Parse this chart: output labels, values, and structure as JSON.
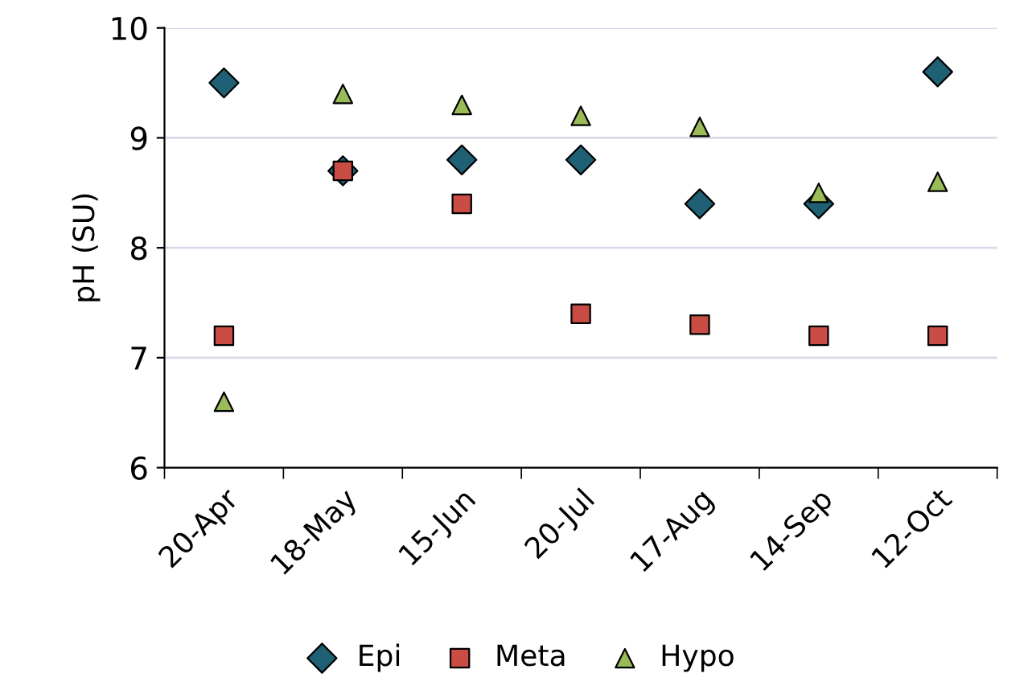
{
  "chart_data": {
    "type": "scatter",
    "ylabel": "pH (SU)",
    "categories": [
      "20-Apr",
      "18-May",
      "15-Jun",
      "20-Jul",
      "17-Aug",
      "14-Sep",
      "12-Oct"
    ],
    "series": [
      {
        "name": "Epi",
        "color": "#1f6075",
        "marker": "diamond",
        "values": [
          9.5,
          8.7,
          8.8,
          8.8,
          8.4,
          8.4,
          9.6
        ]
      },
      {
        "name": "Meta",
        "color": "#c94d45",
        "marker": "square",
        "values": [
          7.2,
          8.7,
          8.4,
          7.4,
          7.3,
          7.2,
          7.2
        ]
      },
      {
        "name": "Hypo",
        "color": "#9bbb59",
        "marker": "triangle",
        "values": [
          6.6,
          9.4,
          9.3,
          9.2,
          9.1,
          8.5,
          8.6
        ]
      }
    ],
    "ylim": [
      6,
      10
    ],
    "yticks": [
      6,
      7,
      8,
      9,
      10
    ],
    "grid": "y",
    "legend": "bottom"
  }
}
